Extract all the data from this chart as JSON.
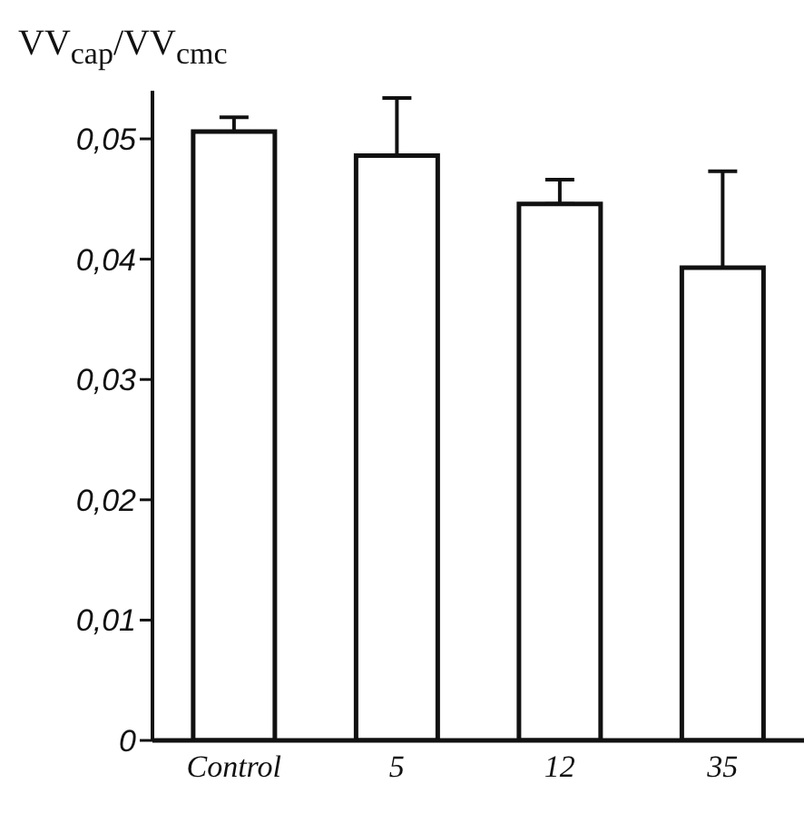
{
  "chart_data": {
    "type": "bar",
    "ylabel": "VV$_{cap}$/VV$_{cmc}$",
    "categories": [
      "Control",
      "5",
      "12",
      "35"
    ],
    "values": [
      0.0506,
      0.0486,
      0.0446,
      0.0393
    ],
    "errors": [
      [
        0.0506,
        0.0518
      ],
      [
        0.0486,
        0.0534
      ],
      [
        0.0446,
        0.0466
      ],
      [
        0.0393,
        0.0473
      ]
    ],
    "color": "#ffffff",
    "ylim": [
      0,
      0.054
    ],
    "yticks": [
      0,
      {
        "value": 0.01,
        "label": "0,01"
      },
      {
        "value": 0.02,
        "label": "0,02"
      },
      {
        "value": 0.03,
        "label": "0,03"
      },
      {
        "value": 0.04,
        "label": "0,04"
      },
      {
        "value": 0.05,
        "label": "0,05"
      }
    ],
    "grid": false,
    "legend": false
  }
}
